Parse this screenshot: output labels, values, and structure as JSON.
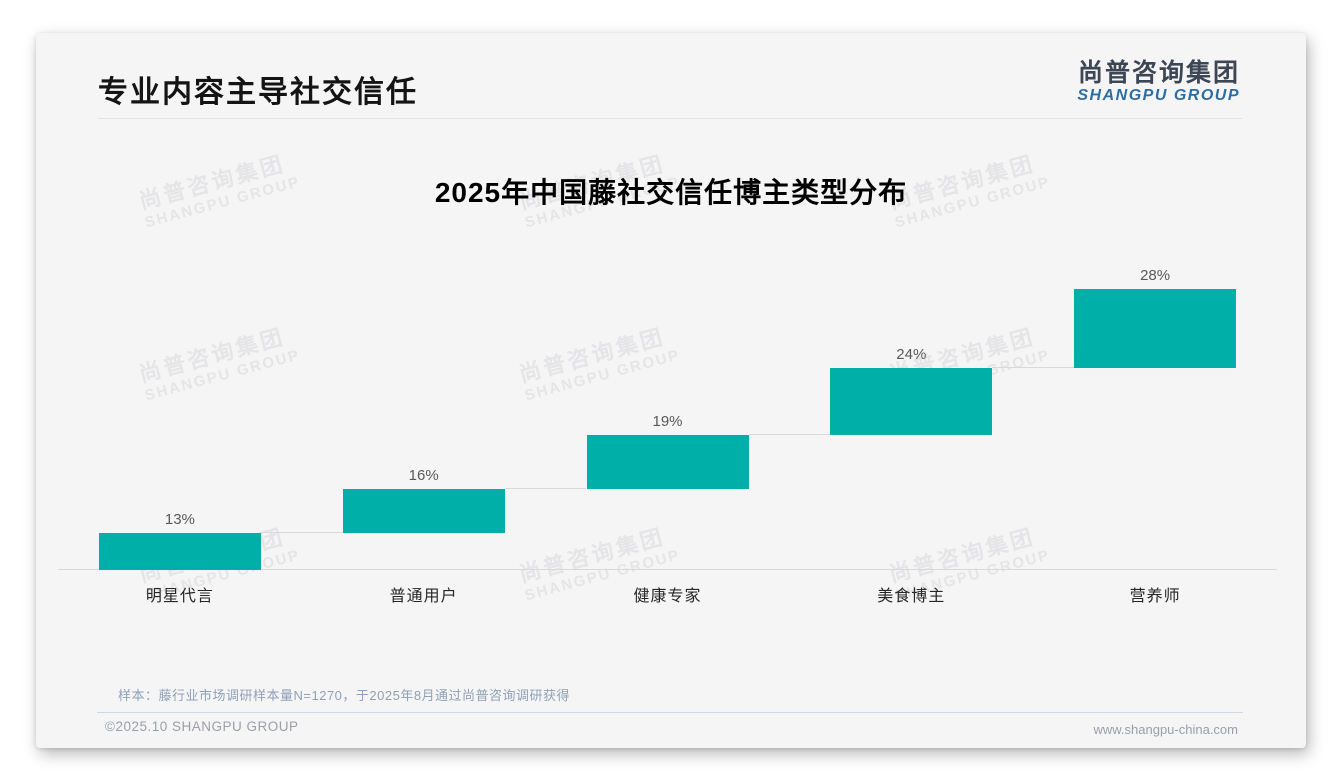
{
  "header": {
    "title": "专业内容主导社交信任",
    "logo": {
      "cn": "尚普咨询集团",
      "en": "SHANGPU GROUP"
    }
  },
  "watermark": {
    "line1": "尚普咨询集团",
    "line2": "SHANGPU GROUP"
  },
  "chart_data": {
    "type": "bar",
    "subtype": "waterfall",
    "title": "2025年中国藤社交信任博主类型分布",
    "categories": [
      "明星代言",
      "普通用户",
      "健康专家",
      "美食博主",
      "营养师"
    ],
    "values": [
      13,
      16,
      19,
      24,
      28
    ],
    "value_labels": [
      "13%",
      "16%",
      "19%",
      "24%",
      "28%"
    ],
    "unit": "%",
    "ylim": [
      0,
      100
    ],
    "grid": false,
    "legend": "none",
    "bar_color": "#00b0a8",
    "connector_color": "#d9d9d9",
    "axis_color": "#d9d9d9",
    "value_label_color": "#595959",
    "category_label_color": "#262626"
  },
  "footer": {
    "note": "样本：藤行业市场调研样本量N=1270，于2025年8月通过尚普咨询调研获得",
    "copyright": "©2025.10 SHANGPU GROUP",
    "url": "www.shangpu-china.com"
  },
  "colors": {
    "accent_teal": "#00b0a8",
    "logo_blue": "#2e6da4",
    "note_blue_gray": "#8fa0b8",
    "slide_background": "#f5f5f6"
  }
}
